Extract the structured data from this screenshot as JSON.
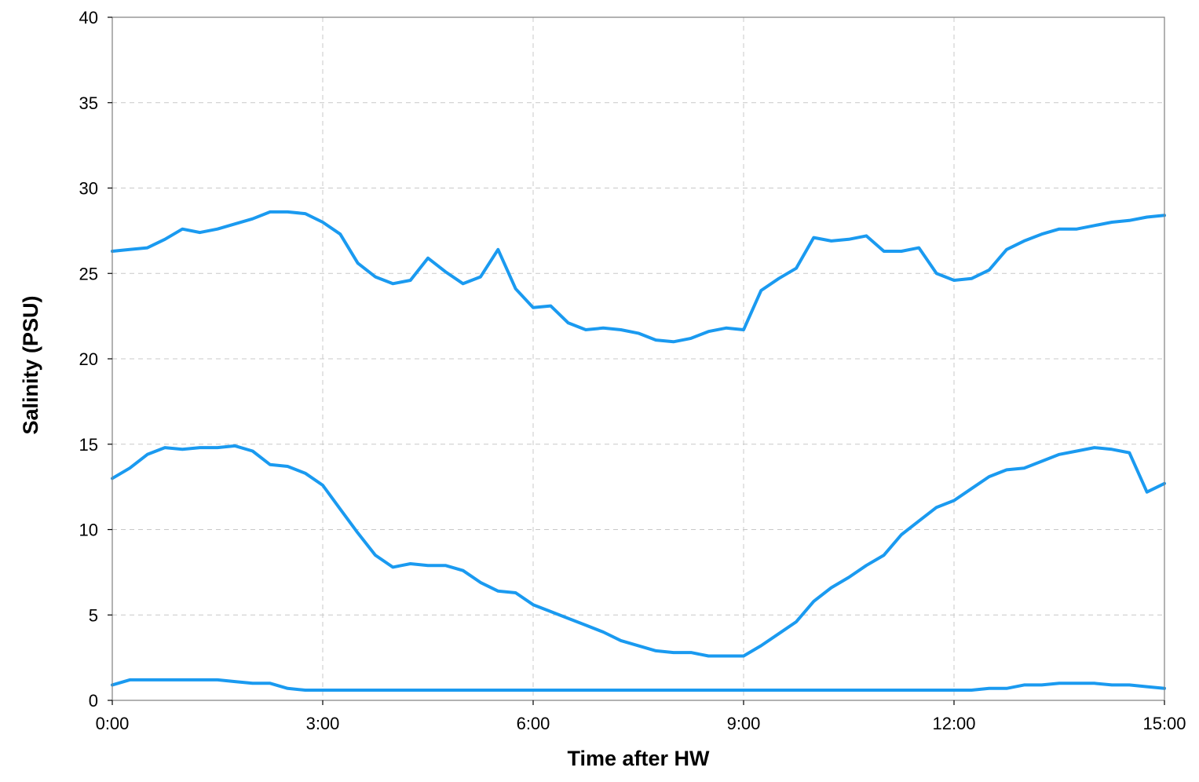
{
  "chart_data": {
    "type": "line",
    "title": "",
    "xlabel": "Time after HW",
    "ylabel": "Salinity (PSU)",
    "xlim": [
      0,
      15
    ],
    "ylim": [
      0,
      40
    ],
    "x_ticks": [
      "0:00",
      "3:00",
      "6:00",
      "9:00",
      "12:00",
      "15:00"
    ],
    "y_ticks": [
      "0",
      "5",
      "10",
      "15",
      "20",
      "25",
      "30",
      "35",
      "40"
    ],
    "grid": true,
    "legend": "none",
    "line_color": "#1a9af0",
    "series": [
      {
        "x": [
          0,
          0.25,
          0.5,
          0.75,
          1,
          1.25,
          1.5,
          1.75,
          2,
          2.25,
          2.5,
          2.75,
          3,
          3.25,
          3.5,
          3.75,
          4,
          4.25,
          4.5,
          4.75,
          5,
          5.25,
          5.5,
          5.75,
          6,
          6.25,
          6.5,
          6.75,
          7,
          7.25,
          7.5,
          7.75,
          8,
          8.25,
          8.5,
          8.75,
          9,
          9.25,
          9.5,
          9.75,
          10,
          10.25,
          10.5,
          10.75,
          11,
          11.25,
          11.5,
          11.75,
          12,
          12.25,
          12.5,
          12.75,
          13,
          13.25,
          13.5,
          13.75,
          14,
          14.25,
          14.5,
          14.75,
          15
        ],
        "values": [
          26.3,
          26.4,
          26.5,
          27.0,
          27.6,
          27.4,
          27.6,
          27.9,
          28.2,
          28.6,
          28.6,
          28.5,
          28.0,
          27.3,
          25.6,
          24.8,
          24.4,
          24.6,
          25.9,
          25.1,
          24.4,
          24.8,
          26.4,
          24.1,
          23.0,
          23.1,
          22.1,
          21.7,
          21.8,
          21.7,
          21.5,
          21.1,
          21.0,
          21.2,
          21.6,
          21.8,
          21.7,
          24.0,
          24.7,
          25.3,
          27.1,
          26.9,
          27.0,
          27.2,
          26.3,
          26.3,
          26.5,
          25.0,
          24.6,
          24.7,
          25.2,
          26.4,
          26.9,
          27.3,
          27.6,
          27.6,
          27.8,
          28.0,
          28.1,
          28.3,
          28.4
        ]
      },
      {
        "x": [
          0,
          0.25,
          0.5,
          0.75,
          1,
          1.25,
          1.5,
          1.75,
          2,
          2.25,
          2.5,
          2.75,
          3,
          3.25,
          3.5,
          3.75,
          4,
          4.25,
          4.5,
          4.75,
          5,
          5.25,
          5.5,
          5.75,
          6,
          6.25,
          6.5,
          6.75,
          7,
          7.25,
          7.5,
          7.75,
          8,
          8.25,
          8.5,
          8.75,
          9,
          9.25,
          9.5,
          9.75,
          10,
          10.25,
          10.5,
          10.75,
          11,
          11.25,
          11.5,
          11.75,
          12,
          12.25,
          12.5,
          12.75,
          13,
          13.25,
          13.5,
          13.75,
          14,
          14.25,
          14.5,
          14.75,
          15
        ],
        "values": [
          13.0,
          13.6,
          14.4,
          14.8,
          14.7,
          14.8,
          14.8,
          14.9,
          14.6,
          13.8,
          13.7,
          13.3,
          12.6,
          11.2,
          9.8,
          8.5,
          7.8,
          8.0,
          7.9,
          7.9,
          7.6,
          6.9,
          6.4,
          6.3,
          5.6,
          5.2,
          4.8,
          4.4,
          4.0,
          3.5,
          3.2,
          2.9,
          2.8,
          2.8,
          2.6,
          2.6,
          2.6,
          3.2,
          3.9,
          4.6,
          5.8,
          6.6,
          7.2,
          7.9,
          8.5,
          9.7,
          10.5,
          11.3,
          11.7,
          12.4,
          13.1,
          13.5,
          13.6,
          14.0,
          14.4,
          14.6,
          14.8,
          14.7,
          14.5,
          12.2,
          12.7
        ]
      },
      {
        "x": [
          0,
          0.25,
          0.5,
          0.75,
          1,
          1.25,
          1.5,
          1.75,
          2,
          2.25,
          2.5,
          2.75,
          3,
          3.25,
          3.5,
          3.75,
          4,
          4.25,
          4.5,
          4.75,
          5,
          5.25,
          5.5,
          5.75,
          6,
          6.25,
          6.5,
          6.75,
          7,
          7.25,
          7.5,
          7.75,
          8,
          8.25,
          8.5,
          8.75,
          9,
          9.25,
          9.5,
          9.75,
          10,
          10.25,
          10.5,
          10.75,
          11,
          11.25,
          11.5,
          11.75,
          12,
          12.25,
          12.5,
          12.75,
          13,
          13.25,
          13.5,
          13.75,
          14,
          14.25,
          14.5,
          14.75,
          15
        ],
        "values": [
          0.9,
          1.2,
          1.2,
          1.2,
          1.2,
          1.2,
          1.2,
          1.1,
          1.0,
          1.0,
          0.7,
          0.6,
          0.6,
          0.6,
          0.6,
          0.6,
          0.6,
          0.6,
          0.6,
          0.6,
          0.6,
          0.6,
          0.6,
          0.6,
          0.6,
          0.6,
          0.6,
          0.6,
          0.6,
          0.6,
          0.6,
          0.6,
          0.6,
          0.6,
          0.6,
          0.6,
          0.6,
          0.6,
          0.6,
          0.6,
          0.6,
          0.6,
          0.6,
          0.6,
          0.6,
          0.6,
          0.6,
          0.6,
          0.6,
          0.6,
          0.7,
          0.7,
          0.9,
          0.9,
          1.0,
          1.0,
          1.0,
          0.9,
          0.9,
          0.8,
          0.7
        ]
      }
    ]
  }
}
